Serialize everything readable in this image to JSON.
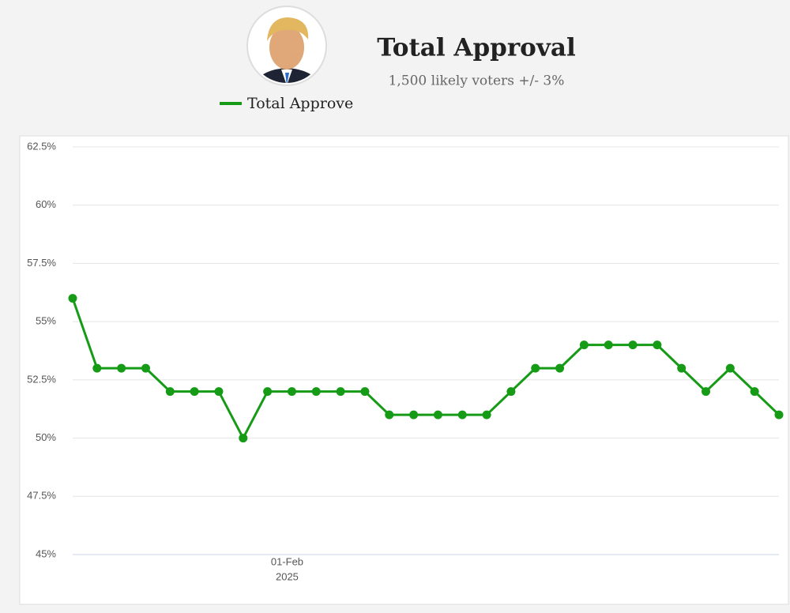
{
  "chart_data": {
    "type": "line",
    "title": "Total Approval",
    "subtitle": "1,500 likely voters +/- 3%",
    "categories": [
      null,
      null,
      null,
      null,
      null,
      null,
      null,
      null,
      null,
      [
        "01-Feb",
        "2025"
      ],
      null,
      null,
      null,
      null,
      null,
      null,
      null,
      null,
      null,
      null,
      null,
      null,
      null,
      null,
      null,
      null,
      null,
      null,
      null,
      null
    ],
    "series": [
      {
        "name": "Total Approve",
        "color": "#169b16",
        "values": [
          56,
          53,
          53,
          53,
          52,
          52,
          52,
          50,
          52,
          52,
          52,
          52,
          52,
          51,
          51,
          51,
          51,
          51,
          52,
          53,
          53,
          54,
          54,
          54,
          54,
          53,
          52,
          53,
          52,
          51
        ]
      }
    ],
    "ylim": [
      45,
      62.5
    ],
    "yticks": [
      {
        "value": 45,
        "label": "45%"
      },
      {
        "value": 47.5,
        "label": "47.5%"
      },
      {
        "value": 50,
        "label": "50%"
      },
      {
        "value": 52.5,
        "label": "52.5%"
      },
      {
        "value": 55,
        "label": "55%"
      },
      {
        "value": 57.5,
        "label": "57.5%"
      },
      {
        "value": 60,
        "label": "60%"
      },
      {
        "value": 62.5,
        "label": "62.5%"
      }
    ],
    "grid": true
  }
}
